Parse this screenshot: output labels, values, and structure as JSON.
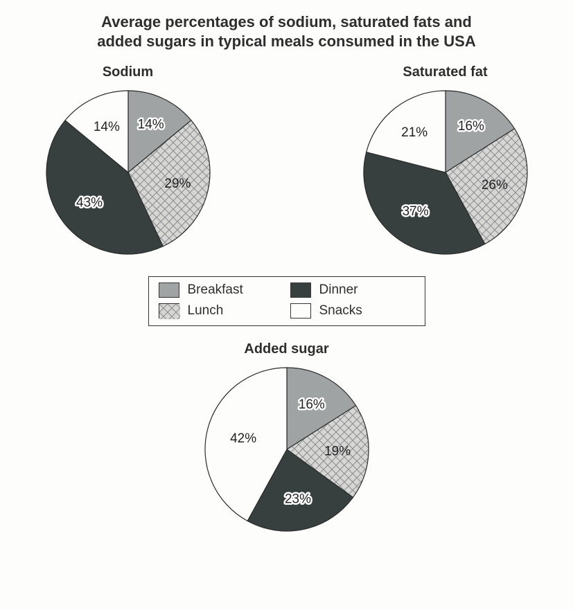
{
  "title_line1": "Average percentages of sodium, saturated fats and",
  "title_line2": "added sugars in typical meals consumed in the USA",
  "title_fontsize": 22,
  "background_color": "#fdfdfb",
  "text_color": "#2e2e2e",
  "categories": [
    {
      "key": "breakfast",
      "label": "Breakfast",
      "fill_type": "solid",
      "color": "#9fa3a3"
    },
    {
      "key": "lunch",
      "label": "Lunch",
      "fill_type": "crosshatch",
      "color": "#d6d7d5",
      "hatch_color": "#8d8f8e"
    },
    {
      "key": "dinner",
      "label": "Dinner",
      "fill_type": "solid",
      "color": "#37403f"
    },
    {
      "key": "snacks",
      "label": "Snacks",
      "fill_type": "solid",
      "color": "#fdfdfb"
    }
  ],
  "stroke_color": "#2b2b2b",
  "stroke_width": 1.2,
  "pie_radius": 118,
  "label_fontsize": 19,
  "chart_title_fontsize": 20,
  "legend": {
    "border_color": "#333333",
    "swatch_w": 30,
    "swatch_h": 22,
    "fontsize": 19
  },
  "charts": [
    {
      "name": "sodium",
      "title": "Sodium",
      "position": "top-left",
      "slices": [
        {
          "category": "breakfast",
          "value": 14,
          "label": "14%",
          "label_outline": true,
          "label_r": 0.65
        },
        {
          "category": "lunch",
          "value": 29,
          "label": "29%",
          "label_outline": false,
          "label_r": 0.62
        },
        {
          "category": "dinner",
          "value": 43,
          "label": "43%",
          "label_outline": true,
          "label_r": 0.6
        },
        {
          "category": "snacks",
          "value": 14,
          "label": "14%",
          "label_outline": false,
          "label_r": 0.62
        }
      ]
    },
    {
      "name": "satfat",
      "title": "Saturated fat",
      "position": "top-right",
      "slices": [
        {
          "category": "breakfast",
          "value": 16,
          "label": "16%",
          "label_outline": true,
          "label_r": 0.65
        },
        {
          "category": "lunch",
          "value": 26,
          "label": "26%",
          "label_outline": false,
          "label_r": 0.62
        },
        {
          "category": "dinner",
          "value": 37,
          "label": "37%",
          "label_outline": true,
          "label_r": 0.6
        },
        {
          "category": "snacks",
          "value": 21,
          "label": "21%",
          "label_outline": false,
          "label_r": 0.62
        }
      ]
    },
    {
      "name": "sugar",
      "title": "Added sugar",
      "position": "bottom",
      "slices": [
        {
          "category": "breakfast",
          "value": 16,
          "label": "16%",
          "label_outline": true,
          "label_r": 0.63
        },
        {
          "category": "lunch",
          "value": 19,
          "label": "19%",
          "label_outline": false,
          "label_r": 0.62
        },
        {
          "category": "dinner",
          "value": 23,
          "label": "23%",
          "label_outline": true,
          "label_r": 0.62
        },
        {
          "category": "snacks",
          "value": 42,
          "label": "42%",
          "label_outline": false,
          "label_r": 0.55
        }
      ]
    }
  ]
}
